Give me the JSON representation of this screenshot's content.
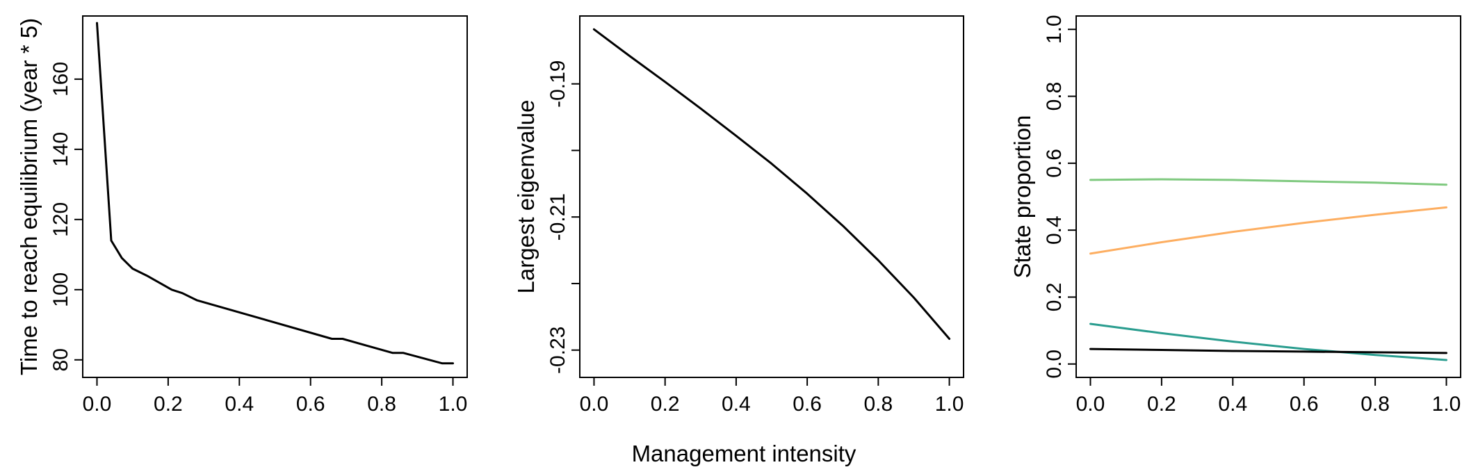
{
  "shared_xlabel": "Management intensity",
  "chart_data": [
    {
      "type": "line",
      "title": "",
      "xlabel": "",
      "ylabel": "Time to reach equilibrium (year * 5)",
      "xlim": [
        -0.04,
        1.04
      ],
      "ylim": [
        75,
        178
      ],
      "x_ticks": [
        0.0,
        0.2,
        0.4,
        0.6,
        0.8,
        1.0
      ],
      "x_tick_labels": [
        "0.0",
        "0.2",
        "0.4",
        "0.6",
        "0.8",
        "1.0"
      ],
      "y_ticks": [
        80,
        100,
        120,
        140,
        160
      ],
      "y_tick_labels": [
        "80",
        "100",
        "120",
        "140",
        "160"
      ],
      "series": [
        {
          "color": "#000000",
          "x": [
            0.0,
            0.04,
            0.07,
            0.1,
            0.14,
            0.21,
            0.24,
            0.28,
            0.66,
            0.69,
            0.83,
            0.86,
            0.97,
            1.0
          ],
          "y": [
            176,
            114,
            109,
            106,
            104,
            100,
            99,
            97,
            86,
            86,
            82,
            82,
            79,
            79
          ]
        }
      ]
    },
    {
      "type": "line",
      "title": "",
      "xlabel": "",
      "ylabel": "Largest eigenvalue",
      "xlim": [
        -0.04,
        1.04
      ],
      "ylim": [
        -0.2341,
        -0.1798
      ],
      "x_ticks": [
        0.0,
        0.2,
        0.4,
        0.6,
        0.8,
        1.0
      ],
      "x_tick_labels": [
        "0.0",
        "0.2",
        "0.4",
        "0.6",
        "0.8",
        "1.0"
      ],
      "y_ticks": [
        -0.23,
        -0.22,
        -0.21,
        -0.2,
        -0.19
      ],
      "y_tick_labels": [
        "-0.23",
        "",
        "-0.21",
        "",
        "-0.19"
      ],
      "series": [
        {
          "color": "#000000",
          "x": [
            0.0,
            0.1,
            0.2,
            0.3,
            0.4,
            0.5,
            0.6,
            0.7,
            0.8,
            0.9,
            1.0
          ],
          "y": [
            -0.1818,
            -0.1858,
            -0.1897,
            -0.1937,
            -0.1978,
            -0.202,
            -0.2065,
            -0.2113,
            -0.2165,
            -0.2221,
            -0.2283
          ]
        }
      ]
    },
    {
      "type": "line",
      "title": "",
      "xlabel": "",
      "ylabel": "State proportion",
      "xlim": [
        -0.04,
        1.04
      ],
      "ylim": [
        -0.04,
        1.04
      ],
      "x_ticks": [
        0.0,
        0.2,
        0.4,
        0.6,
        0.8,
        1.0
      ],
      "x_tick_labels": [
        "0.0",
        "0.2",
        "0.4",
        "0.6",
        "0.8",
        "1.0"
      ],
      "y_ticks": [
        0.0,
        0.2,
        0.4,
        0.6,
        0.8,
        1.0
      ],
      "y_tick_labels": [
        "0.0",
        "0.2",
        "0.4",
        "0.6",
        "0.8",
        "1.0"
      ],
      "series": [
        {
          "color": "#7fc97f",
          "x": [
            0.0,
            0.2,
            0.4,
            0.6,
            0.8,
            1.0
          ],
          "y": [
            0.55,
            0.552,
            0.55,
            0.546,
            0.542,
            0.536
          ]
        },
        {
          "color": "#fdae61",
          "x": [
            0.0,
            0.2,
            0.4,
            0.6,
            0.8,
            1.0
          ],
          "y": [
            0.33,
            0.364,
            0.395,
            0.422,
            0.446,
            0.468
          ]
        },
        {
          "color": "#2a9d8f",
          "x": [
            0.0,
            0.2,
            0.4,
            0.6,
            0.8,
            1.0
          ],
          "y": [
            0.12,
            0.092,
            0.067,
            0.045,
            0.027,
            0.012
          ]
        },
        {
          "color": "#000000",
          "x": [
            0.0,
            0.2,
            0.4,
            0.6,
            0.8,
            1.0
          ],
          "y": [
            0.045,
            0.042,
            0.039,
            0.037,
            0.035,
            0.033
          ]
        }
      ]
    }
  ]
}
